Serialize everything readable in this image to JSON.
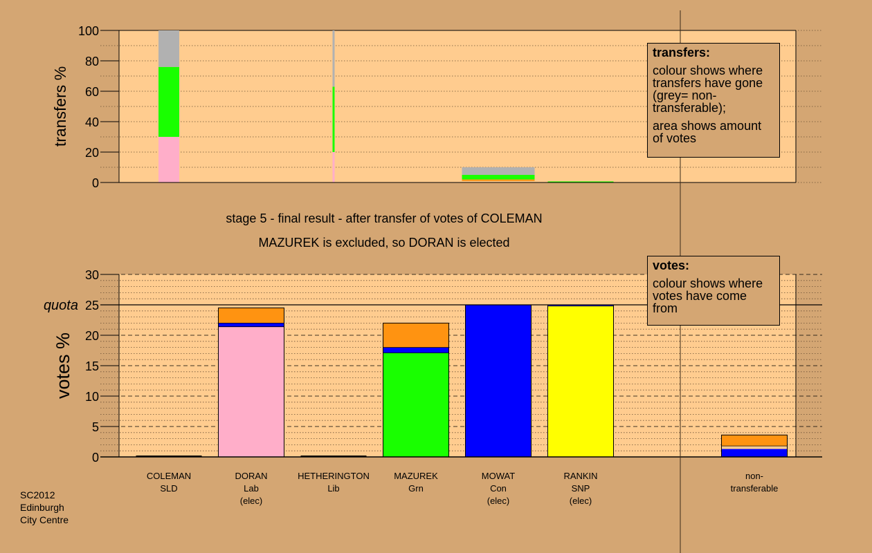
{
  "chart_data": [
    {
      "type": "bar",
      "subtype": "stacked-transfers",
      "ylabel": "transfers %",
      "ylim": [
        0,
        100
      ],
      "yticks": [
        "0",
        "20",
        "40",
        "60",
        "80",
        "100"
      ],
      "grid": "dotted",
      "transfer_bars": [
        {
          "position": "COLEMAN",
          "width": "wide",
          "segments": [
            {
              "color": "#ffaec9",
              "from": 0,
              "to": 30
            },
            {
              "color": "#19ff00",
              "from": 30,
              "to": 76
            },
            {
              "color": "#b1b1b1",
              "from": 76,
              "to": 100
            }
          ]
        },
        {
          "position": "HETHERINGTON",
          "width": "thin",
          "segments": [
            {
              "color": "#ffaec9",
              "from": 0,
              "to": 20
            },
            {
              "color": "#19ff00",
              "from": 20,
              "to": 63
            },
            {
              "color": "#b1b1b1",
              "from": 63,
              "to": 100
            }
          ]
        },
        {
          "position": "MOWAT",
          "width": "wide",
          "segments": [
            {
              "color": "#ff9311",
              "from": 1,
              "to": 2
            },
            {
              "color": "#19ff00",
              "from": 2,
              "to": 5
            },
            {
              "color": "#b1b1b1",
              "from": 5,
              "to": 10
            }
          ]
        },
        {
          "position": "RANKIN",
          "width": "wide",
          "segments": [
            {
              "color": "#19ff00",
              "from": 0,
              "to": 0.7
            }
          ]
        }
      ]
    },
    {
      "type": "bar",
      "subtype": "stacked-votes",
      "ylabel": "votes %",
      "ylim": [
        0,
        30
      ],
      "yticks": [
        "0",
        "5",
        "10",
        "15",
        "20",
        "25",
        "30"
      ],
      "quota": 25,
      "quota_label": "quota",
      "grid": "dashed-and-dotted",
      "candidates": [
        {
          "name": "COLEMAN",
          "party": "SLD",
          "status": "",
          "segments": []
        },
        {
          "name": "DORAN",
          "party": "Lab",
          "status": "(elec)",
          "segments": [
            {
              "color": "#ffaec9",
              "from": 0,
              "to": 21.4
            },
            {
              "color": "#0000ff",
              "from": 21.4,
              "to": 22.0
            },
            {
              "color": "#ff9311",
              "from": 22.0,
              "to": 24.5
            }
          ]
        },
        {
          "name": "HETHERINGTON",
          "party": "Lib",
          "status": "",
          "segments": []
        },
        {
          "name": "MAZUREK",
          "party": "Grn",
          "status": "",
          "segments": [
            {
              "color": "#19ff00",
              "from": 0,
              "to": 17.1
            },
            {
              "color": "#0000ff",
              "from": 17.1,
              "to": 18.0
            },
            {
              "color": "#ff9311",
              "from": 18.0,
              "to": 22.0
            }
          ]
        },
        {
          "name": "MOWAT",
          "party": "Con",
          "status": "(elec)",
          "segments": [
            {
              "color": "#0000ff",
              "from": 0,
              "to": 25.0
            }
          ]
        },
        {
          "name": "RANKIN",
          "party": "SNP",
          "status": "(elec)",
          "segments": [
            {
              "color": "#ffff00",
              "from": 0,
              "to": 24.8
            },
            {
              "color": "#0000ff",
              "from": 24.8,
              "to": 25.0
            }
          ]
        },
        {
          "name": "non-",
          "party": "transferable",
          "status": "",
          "segments": [
            {
              "color": "#0000ff",
              "from": 0,
              "to": 1.3
            },
            {
              "color": "#ff9311",
              "from": 1.8,
              "to": 3.6
            }
          ]
        }
      ]
    }
  ],
  "colors": {
    "background": "#d4a673",
    "plot_area": "#ffcc8f",
    "pink": "#ffaec9",
    "green": "#19ff00",
    "grey": "#b1b1b1",
    "blue": "#0000ff",
    "yellow": "#ffff00",
    "orange": "#ff9311"
  },
  "legend_transfers": {
    "title": "transfers:",
    "line1": "colour shows where transfers have gone (grey= non-transferable);",
    "line2": "area shows amount of votes"
  },
  "legend_votes": {
    "title": "votes:",
    "line1": "colour shows where votes have come from"
  },
  "caption": {
    "line1": "stage 5 - final result - after transfer of votes of COLEMAN",
    "line2": "MAZUREK is excluded, so DORAN is elected"
  },
  "footer": {
    "line1": "SC2012",
    "line2": "Edinburgh",
    "line3": "City Centre"
  }
}
